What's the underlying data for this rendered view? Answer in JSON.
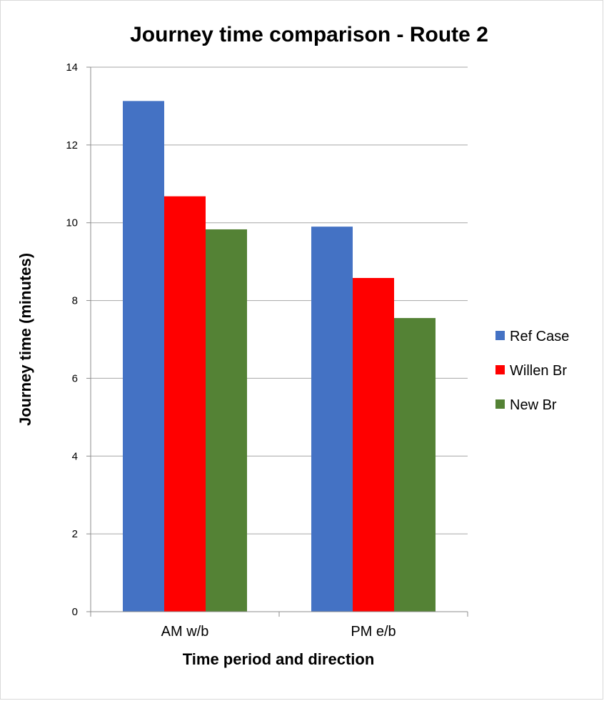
{
  "chart_data": {
    "type": "bar",
    "title": "Journey time comparison - Route 2",
    "xlabel": "Time period and direction",
    "ylabel": "Journey time (minutes)",
    "categories": [
      "AM w/b",
      "PM e/b"
    ],
    "series": [
      {
        "name": "Ref Case",
        "color": "#4472C4",
        "values": [
          13.13,
          9.9
        ]
      },
      {
        "name": "Willen Br",
        "color": "#FF0000",
        "values": [
          10.68,
          8.58
        ]
      },
      {
        "name": "New Br",
        "color": "#548235",
        "values": [
          9.83,
          7.55
        ]
      }
    ],
    "ylim": [
      0,
      14
    ],
    "yticks": [
      "0",
      "2",
      "4",
      "6",
      "8",
      "10",
      "12",
      "14"
    ],
    "grid": true,
    "legend": "right"
  }
}
